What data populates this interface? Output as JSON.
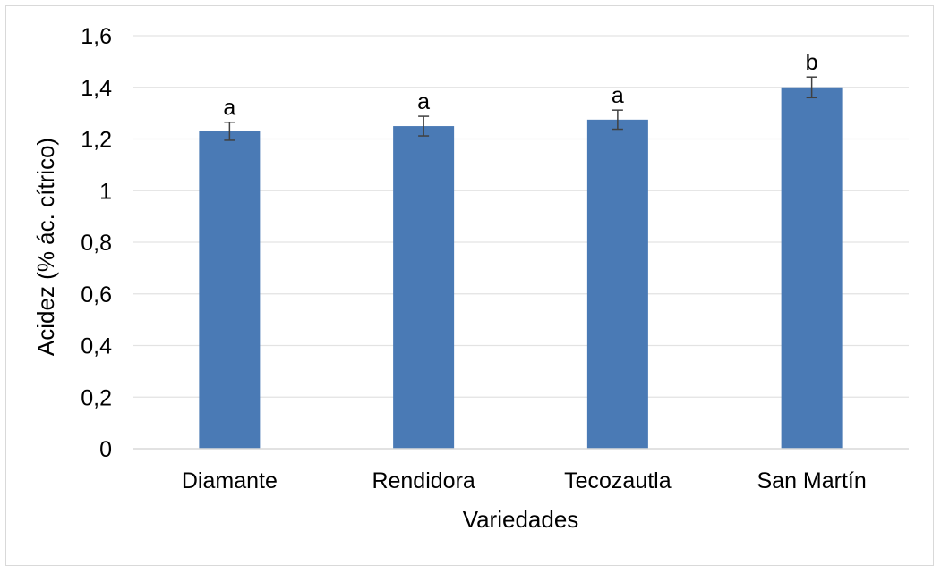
{
  "chart_data": {
    "type": "bar",
    "title": "",
    "xlabel": "Variedades",
    "ylabel": "Acidez (% ác. cítrico)",
    "ylim": [
      0,
      1.6
    ],
    "yticks": [
      "0",
      "0,2",
      "0,4",
      "0,6",
      "0,8",
      "1",
      "1,2",
      "1,4",
      "1,6"
    ],
    "grid": true,
    "legend": "none",
    "bar_color": "#4a7ab5",
    "categories": [
      "Diamante",
      "Rendidora",
      "Tecozautla",
      "San Martín"
    ],
    "values": [
      1.23,
      1.25,
      1.275,
      1.4
    ],
    "errors": [
      0.035,
      0.038,
      0.037,
      0.04
    ],
    "significance_labels": [
      "a",
      "a",
      "a",
      "b"
    ]
  }
}
